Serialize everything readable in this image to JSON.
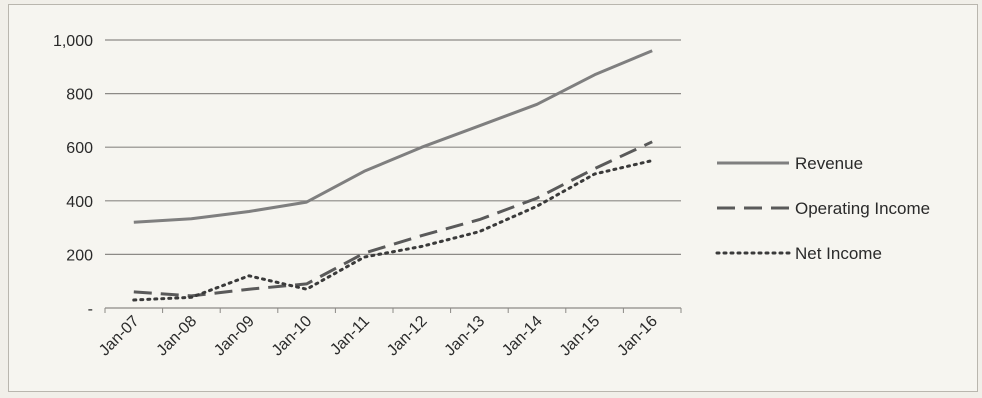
{
  "chart_data": {
    "type": "line",
    "title": "",
    "xlabel": "",
    "ylabel": "",
    "categories": [
      "Jan-07",
      "Jan-08",
      "Jan-09",
      "Jan-10",
      "Jan-11",
      "Jan-12",
      "Jan-13",
      "Jan-14",
      "Jan-15",
      "Jan-16"
    ],
    "ylim": [
      0,
      1000
    ],
    "yticks": [
      0,
      200,
      400,
      600,
      800,
      1000
    ],
    "ytick_labels": [
      "-",
      "200",
      "400",
      "600",
      "800",
      "1,000"
    ],
    "grid": true,
    "legend_position": "right",
    "series": [
      {
        "name": "Revenue",
        "style": "solid",
        "color": "#7f7f7f",
        "values": [
          320,
          333,
          360,
          395,
          510,
          600,
          680,
          760,
          870,
          960
        ]
      },
      {
        "name": "Operating Income",
        "style": "dashed",
        "color": "#5a5a5a",
        "values": [
          60,
          45,
          70,
          90,
          205,
          270,
          330,
          410,
          520,
          620
        ]
      },
      {
        "name": "Net Income",
        "style": "dotted",
        "color": "#3a3a3a",
        "values": [
          30,
          40,
          120,
          70,
          190,
          230,
          285,
          380,
          500,
          550
        ]
      }
    ]
  }
}
